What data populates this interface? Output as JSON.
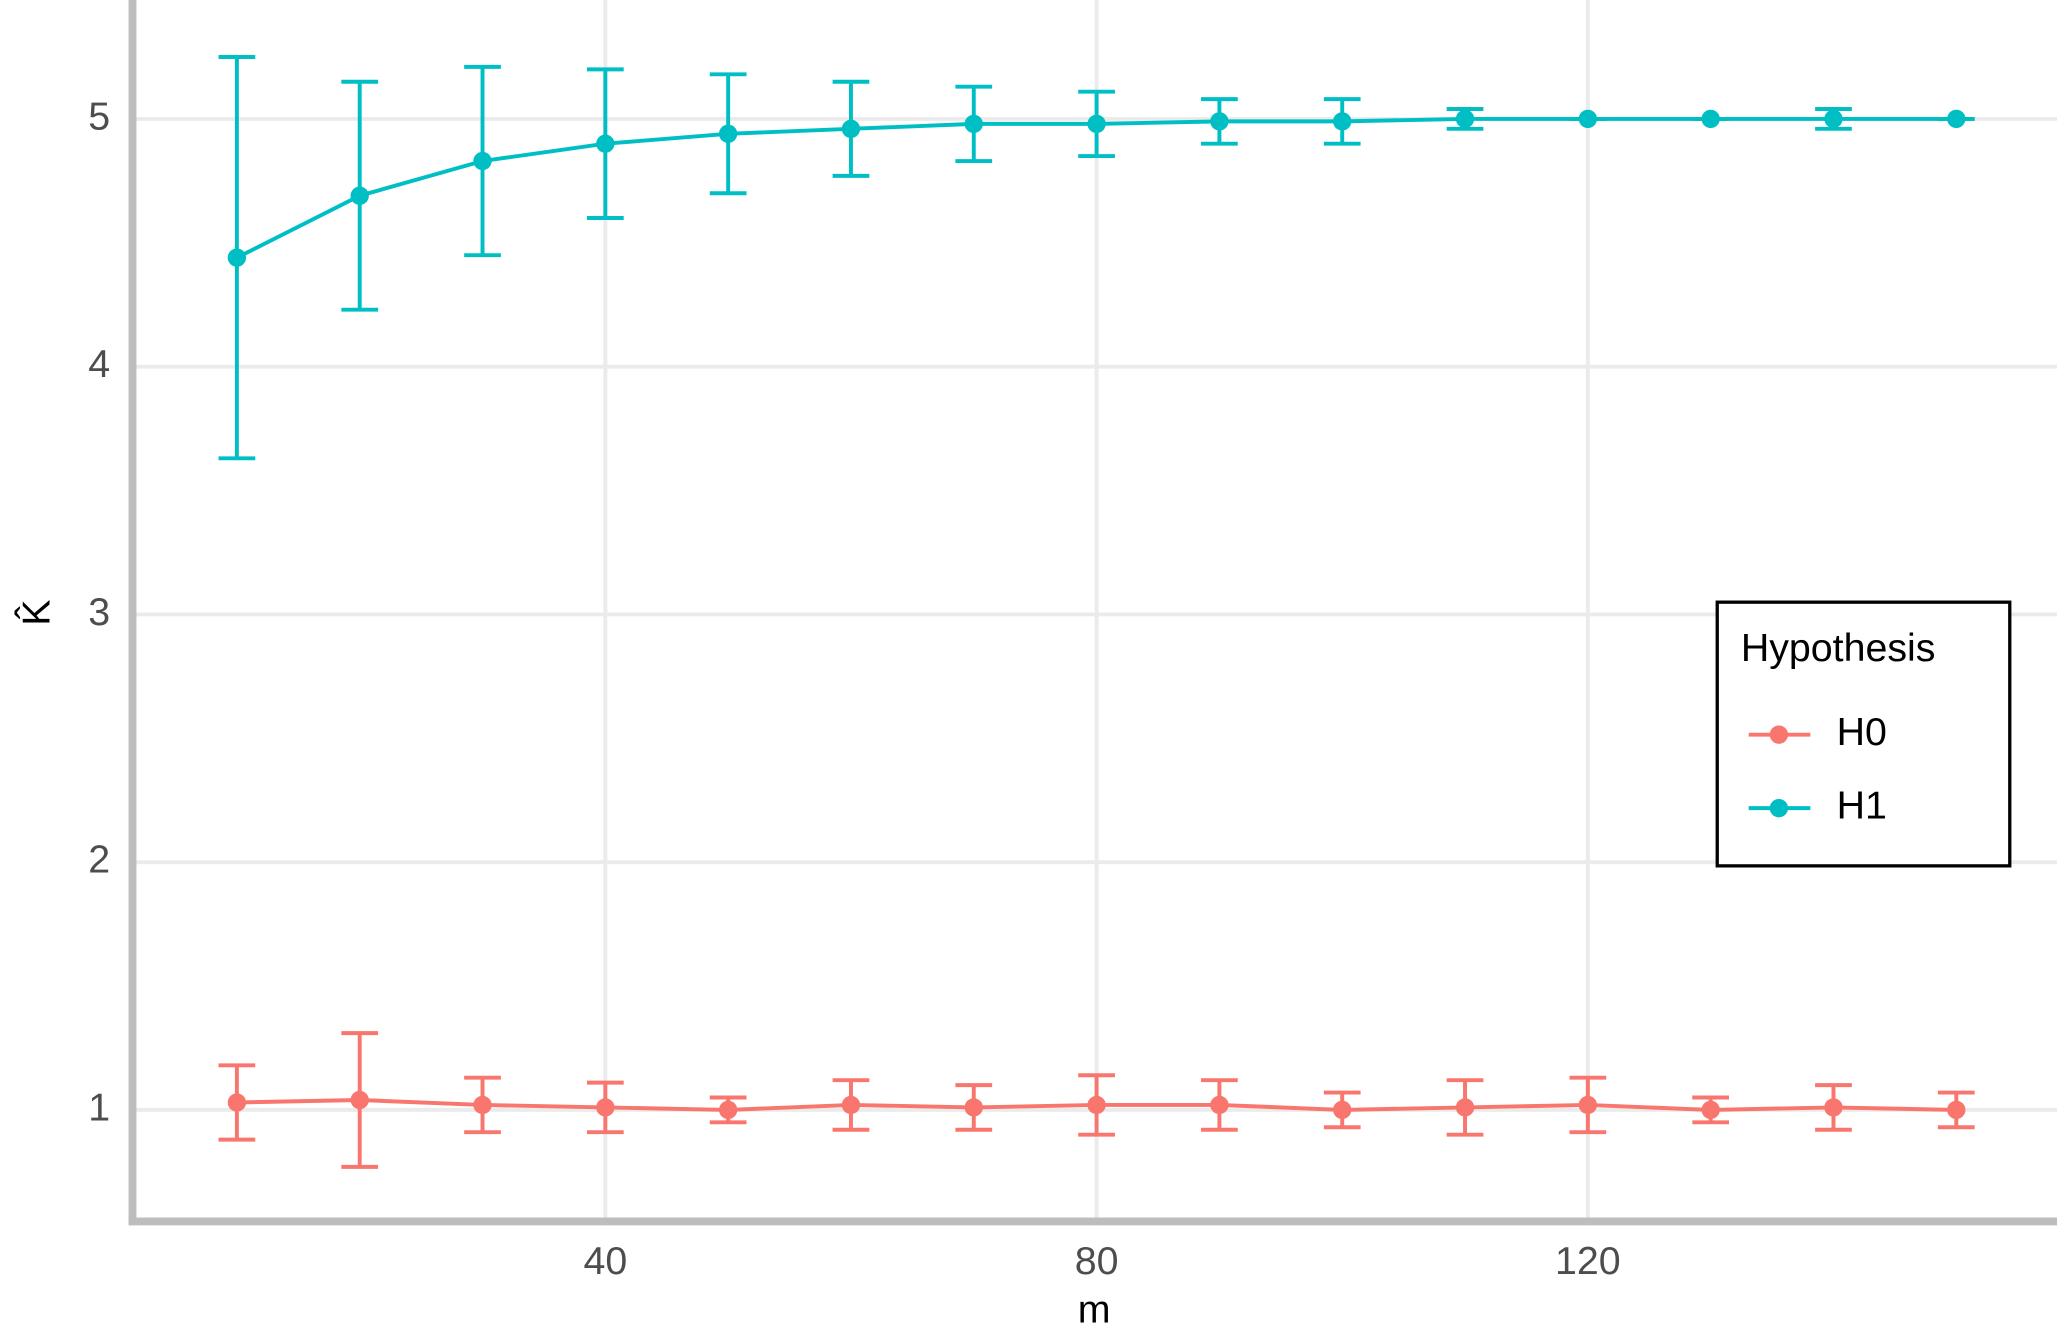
{
  "chart_data": {
    "type": "line",
    "xlabel": "m",
    "ylabel": "K̂",
    "x": [
      10,
      20,
      30,
      40,
      50,
      60,
      70,
      80,
      90,
      100,
      110,
      120,
      130,
      140,
      150
    ],
    "series": [
      {
        "name": "H0",
        "color": "#f8766d",
        "values": [
          1.03,
          1.04,
          1.02,
          1.01,
          1.0,
          1.02,
          1.01,
          1.02,
          1.02,
          1.0,
          1.01,
          1.02,
          1.0,
          1.01,
          1.0
        ],
        "errors": [
          0.15,
          0.27,
          0.11,
          0.1,
          0.05,
          0.1,
          0.09,
          0.12,
          0.1,
          0.07,
          0.11,
          0.11,
          0.05,
          0.09,
          0.07
        ]
      },
      {
        "name": "H1",
        "color": "#00bfc4",
        "values": [
          4.44,
          4.69,
          4.83,
          4.9,
          4.94,
          4.96,
          4.98,
          4.98,
          4.99,
          4.99,
          5.0,
          5.0,
          5.0,
          5.0,
          5.0
        ],
        "errors": [
          0.81,
          0.46,
          0.38,
          0.3,
          0.24,
          0.19,
          0.15,
          0.13,
          0.09,
          0.09,
          0.04,
          0.0,
          0.0,
          0.04,
          0.0
        ]
      }
    ],
    "xlim": [
      1.5,
      158.2
    ],
    "ylim": [
      0.55,
      5.48
    ],
    "xticks": [
      40,
      80,
      120
    ],
    "yticks": [
      1,
      2,
      3,
      4,
      5
    ],
    "grid": true,
    "legend_title": "Hypothesis",
    "legend_position": "right"
  }
}
